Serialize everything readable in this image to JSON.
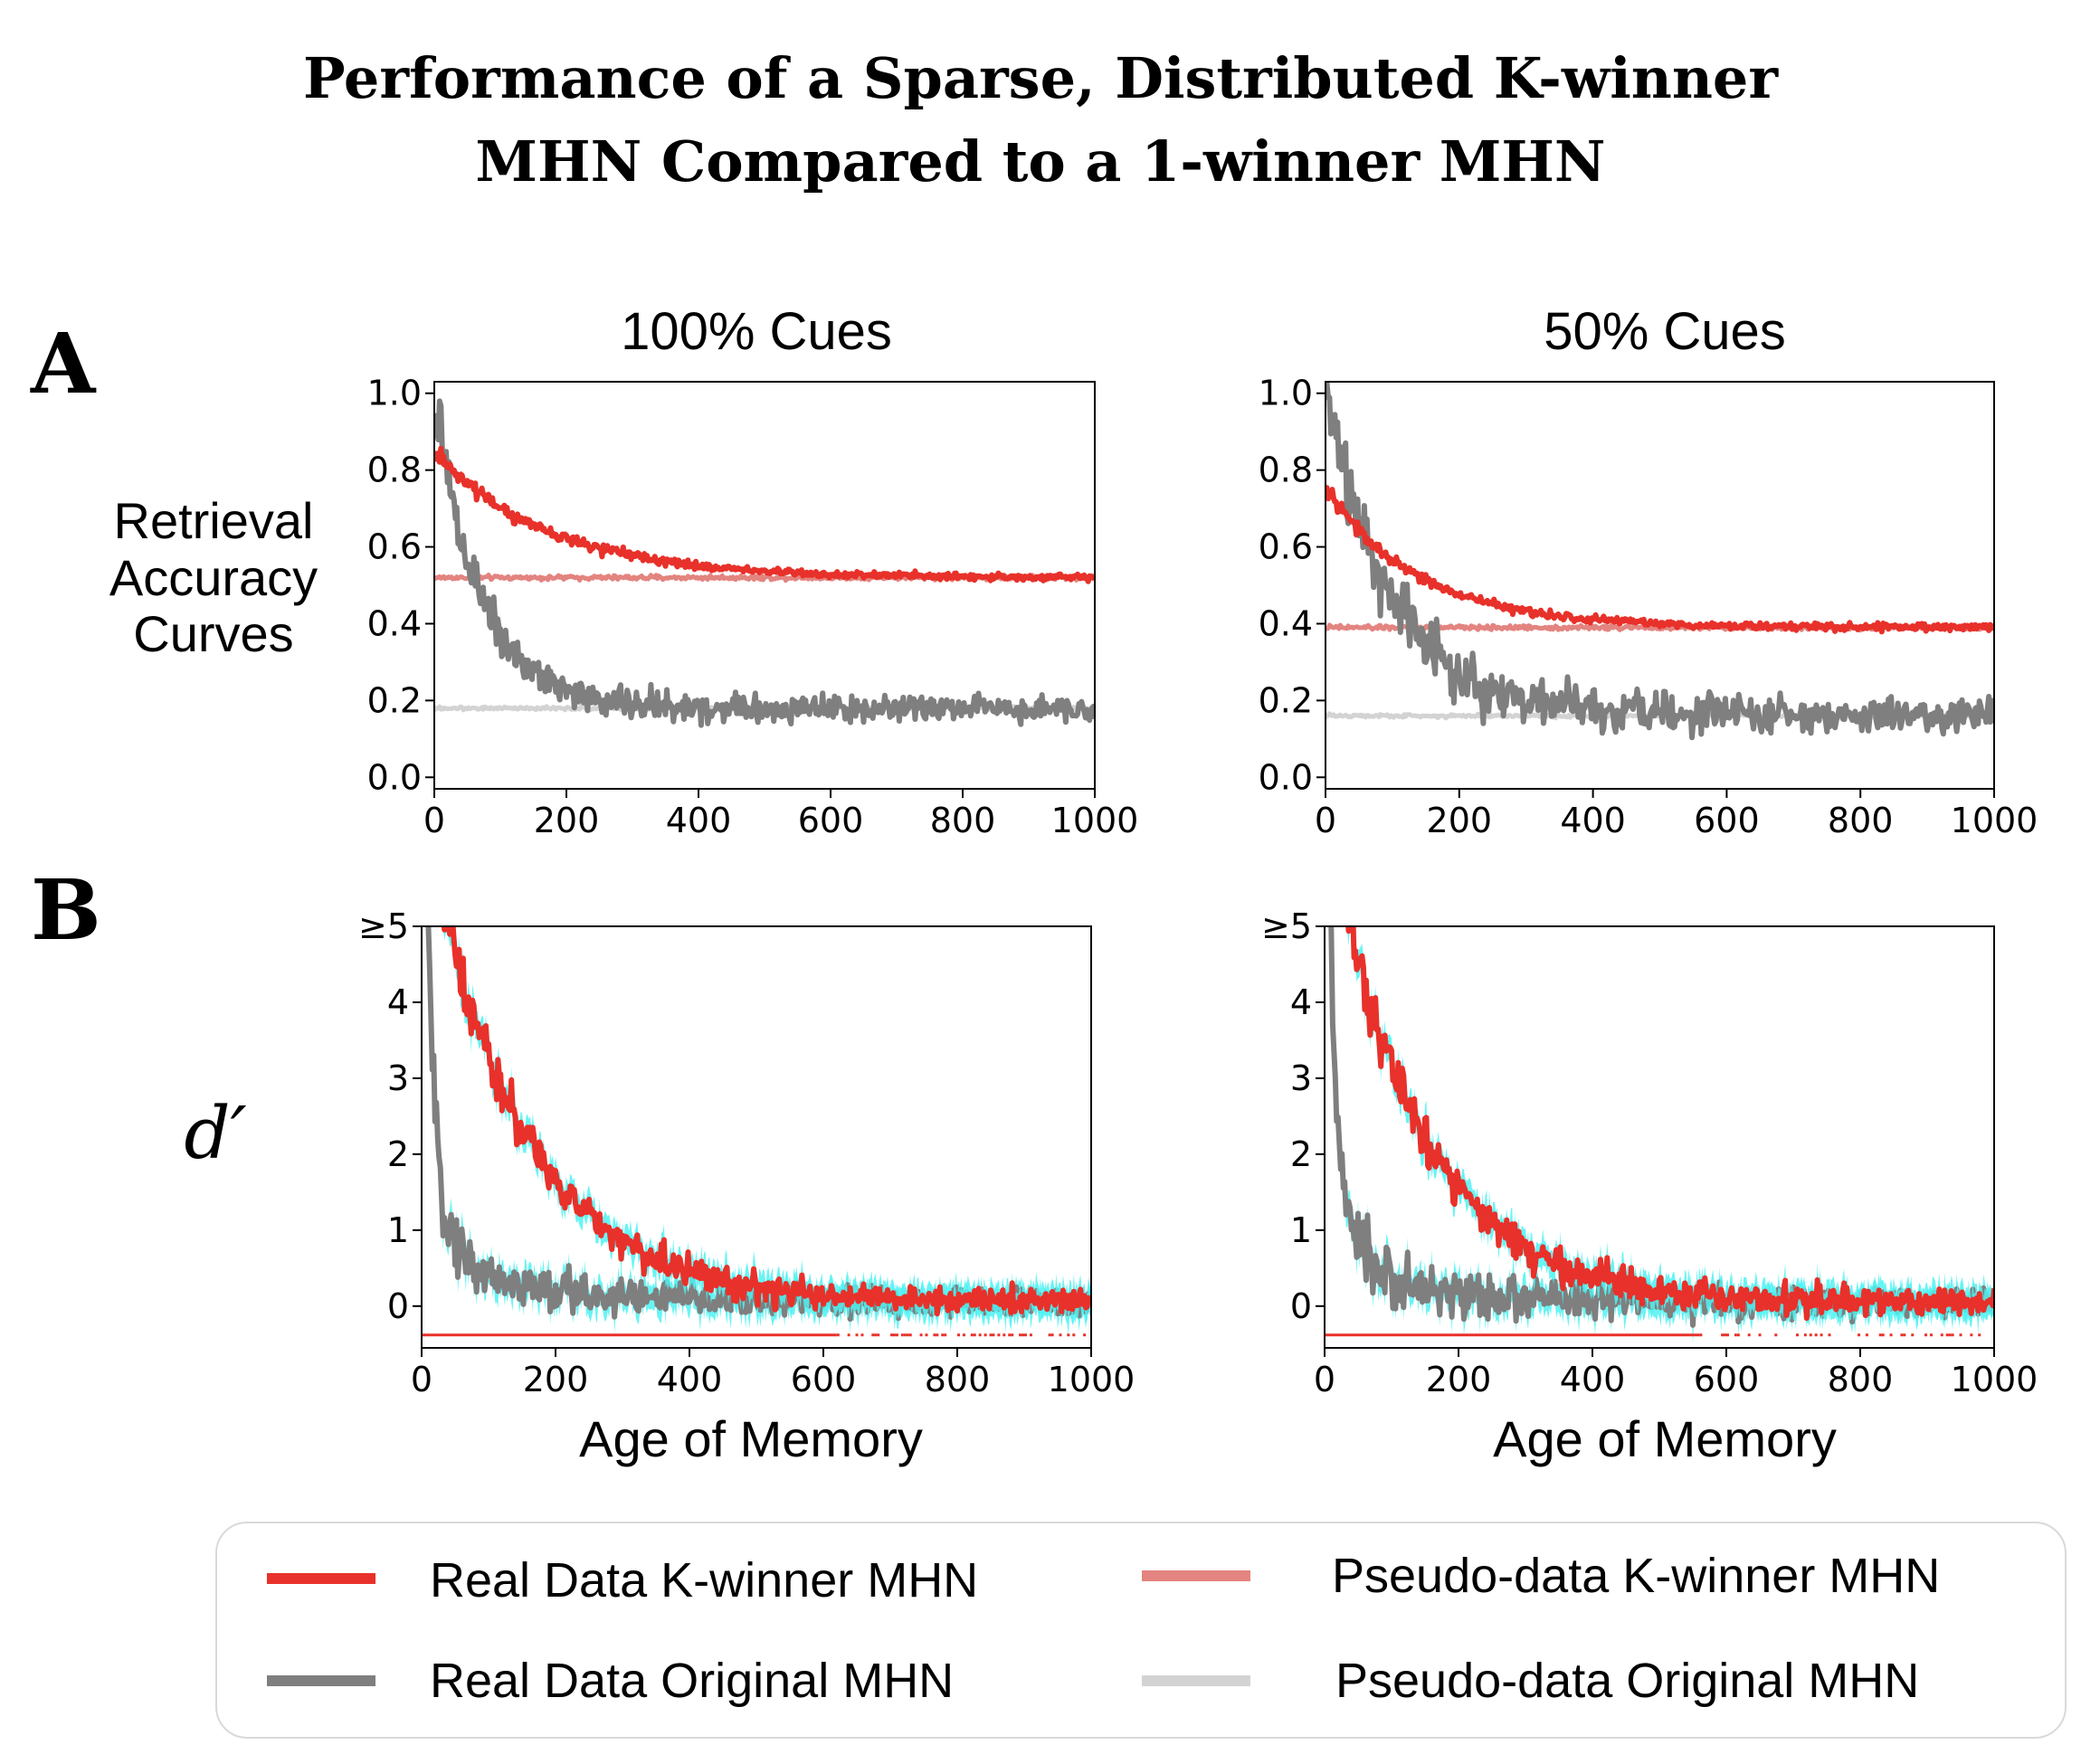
{
  "title_lines": [
    "Performance of a Sparse, Distributed K-winner",
    "MHN Compared to a 1-winner MHN"
  ],
  "row_letters": [
    "A",
    "B"
  ],
  "row_labels": {
    "A": [
      "Retrieval",
      "Accuracy",
      "Curves"
    ],
    "B": "d′"
  },
  "colors": {
    "real_kwinner": "#e8312a",
    "pseudo_kwinner": "#e38480",
    "real_original": "#7f7f7f",
    "pseudo_original": "#d3d3d3",
    "error_band": "#4ff2f2"
  },
  "legend": [
    {
      "label": "Real Data K-winner MHN",
      "color": "#e8312a"
    },
    {
      "label": "Pseudo-data K-winner MHN",
      "color": "#e38480"
    },
    {
      "label": "Real Data Original MHN",
      "color": "#7f7f7f"
    },
    {
      "label": "Pseudo-data Original MHN",
      "color": "#d3d3d3"
    }
  ],
  "chart_data": [
    {
      "id": "A-100",
      "type": "line",
      "title": "100% Cues",
      "xlabel": "",
      "ylabel": "Retrieval Accuracy Curves",
      "xlim": [
        0,
        1000
      ],
      "ylim": [
        -0.03,
        1.03
      ],
      "xticks": [
        0,
        200,
        400,
        600,
        800,
        1000
      ],
      "yticks": [
        0.0,
        0.2,
        0.4,
        0.6,
        0.8,
        1.0
      ],
      "ytick_labels": [
        "0.0",
        "0.2",
        "0.4",
        "0.6",
        "0.8",
        "1.0"
      ],
      "series": [
        {
          "name": "Real Data K-winner MHN",
          "model": "exp",
          "start": 0.85,
          "floor": 0.52,
          "tau": 170,
          "noise": 0.006
        },
        {
          "name": "Pseudo-data K-winner MHN",
          "model": "const",
          "value": 0.52,
          "noise": 0.004
        },
        {
          "name": "Real Data Original MHN",
          "model": "exp",
          "start": 1.0,
          "floor": 0.18,
          "tau": 70,
          "noise": 0.022
        },
        {
          "name": "Pseudo-data Original MHN",
          "model": "const",
          "value": 0.18,
          "noise": 0.003
        }
      ]
    },
    {
      "id": "A-50",
      "type": "line",
      "title": "50% Cues",
      "xlabel": "",
      "ylabel": "",
      "xlim": [
        0,
        1000
      ],
      "ylim": [
        -0.03,
        1.03
      ],
      "xticks": [
        0,
        200,
        400,
        600,
        800,
        1000
      ],
      "yticks": [
        0.0,
        0.2,
        0.4,
        0.6,
        0.8,
        1.0
      ],
      "ytick_labels": [
        "0.0",
        "0.2",
        "0.4",
        "0.6",
        "0.8",
        "1.0"
      ],
      "series": [
        {
          "name": "Real Data K-winner MHN",
          "model": "exp",
          "start": 0.75,
          "floor": 0.39,
          "tau": 140,
          "noise": 0.006
        },
        {
          "name": "Pseudo-data K-winner MHN",
          "model": "const",
          "value": 0.39,
          "noise": 0.004
        },
        {
          "name": "Real Data Original MHN",
          "model": "exp",
          "start": 1.0,
          "floor": 0.16,
          "tau": 100,
          "noise": 0.03
        },
        {
          "name": "Pseudo-data Original MHN",
          "model": "const",
          "value": 0.16,
          "noise": 0.003
        }
      ]
    },
    {
      "id": "B-100",
      "type": "line",
      "title": "",
      "xlabel": "Age of Memory",
      "ylabel": "d′",
      "xlim": [
        0,
        1000
      ],
      "ylim": [
        -0.55,
        5.0
      ],
      "xticks": [
        0,
        200,
        400,
        600,
        800,
        1000
      ],
      "yticks": [
        0,
        1,
        2,
        3,
        4,
        5
      ],
      "ytick_labels": [
        "0",
        "1",
        "2",
        "3",
        "4",
        "≥5"
      ],
      "series": [
        {
          "name": "Real Data K-winner MHN",
          "model": "exp",
          "start": 6.4,
          "floor": 0.05,
          "tau": 145,
          "noise": 0.12,
          "band": 0.14
        },
        {
          "name": "Real Data Original MHN",
          "model": "power",
          "a": 80,
          "p": 1.15,
          "floor": 0.02,
          "noise": 0.13,
          "band": 0.14
        }
      ],
      "markers": {
        "y": -0.38,
        "solid_until": 620,
        "sparse_until": 1000
      }
    },
    {
      "id": "B-50",
      "type": "line",
      "title": "",
      "xlabel": "Age of Memory",
      "ylabel": "",
      "xlim": [
        0,
        1000
      ],
      "ylim": [
        -0.55,
        5.0
      ],
      "xticks": [
        0,
        200,
        400,
        600,
        800,
        1000
      ],
      "yticks": [
        0,
        1,
        2,
        3,
        4,
        5
      ],
      "ytick_labels": [
        "0",
        "1",
        "2",
        "3",
        "4",
        "≥5"
      ],
      "series": [
        {
          "name": "Real Data K-winner MHN",
          "model": "exp",
          "start": 6.6,
          "floor": 0.05,
          "tau": 135,
          "noise": 0.12,
          "band": 0.14
        },
        {
          "name": "Real Data Original MHN",
          "model": "power",
          "a": 75,
          "p": 1.15,
          "floor": 0.0,
          "noise": 0.13,
          "band": 0.14
        }
      ],
      "markers": {
        "y": -0.38,
        "solid_until": 560,
        "sparse_until": 1000
      }
    }
  ]
}
